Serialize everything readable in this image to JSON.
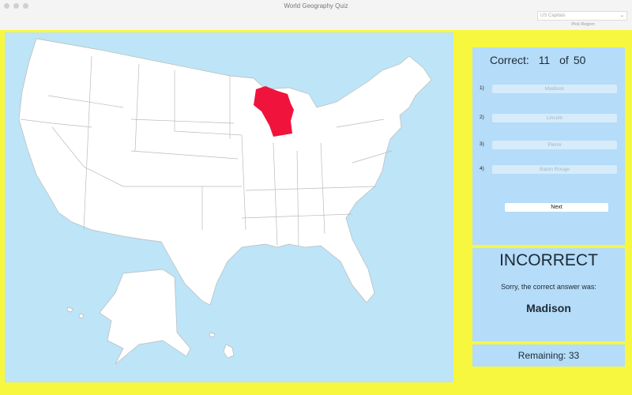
{
  "window": {
    "title": "World Geography Quiz"
  },
  "region_picker": {
    "selected": "US Capitals",
    "label": "Pick Region"
  },
  "map": {
    "highlighted_state": "Wisconsin",
    "highlight_color": "#f0143c",
    "water_color": "#bde4f7",
    "land_color": "#ffffff"
  },
  "quiz": {
    "score": {
      "label": "Correct:",
      "correct": "11",
      "of_label": "of",
      "total": "50"
    },
    "answers": [
      {
        "number": "1)",
        "label": "Madison"
      },
      {
        "number": "2)",
        "label": "Lincoln"
      },
      {
        "number": "3)",
        "label": "Pierre"
      },
      {
        "number": "4)",
        "label": "Baton Rouge"
      }
    ],
    "next_label": "Next"
  },
  "result": {
    "heading": "INCORRECT",
    "message": "Sorry, the correct answer was:",
    "answer": "Madison"
  },
  "remaining": {
    "text": "Remaining: 33"
  },
  "colors": {
    "background": "#f7f740",
    "panel": "#b5dcf8"
  }
}
